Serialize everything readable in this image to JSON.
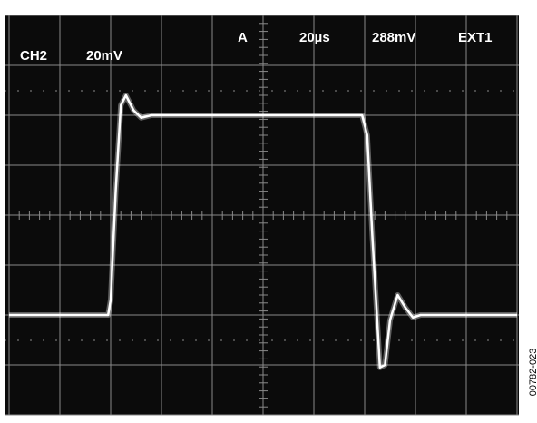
{
  "chart_data": {
    "type": "line",
    "labels": [
      "CH2",
      "20mV",
      "A",
      "20µs",
      "288mV",
      "EXT1"
    ],
    "figure_id": "00782-023",
    "x": [
      0,
      1.95,
      2.0,
      2.1,
      2.2,
      2.3,
      2.45,
      2.6,
      2.8,
      6.95,
      7.05,
      7.15,
      7.3,
      7.4,
      7.5,
      7.65,
      7.8,
      7.95,
      8.1,
      8.3,
      10
    ],
    "series": [
      {
        "color": "#ffffff",
        "values": [
          2,
          2,
          2.3,
          4.5,
          6.2,
          6.4,
          6.1,
          5.95,
          6,
          6,
          5.6,
          3.6,
          0.95,
          1.0,
          1.9,
          2.4,
          2.15,
          1.95,
          2,
          2,
          2
        ]
      }
    ],
    "xlim": [
      0,
      10
    ],
    "ylim": [
      0,
      8
    ]
  }
}
